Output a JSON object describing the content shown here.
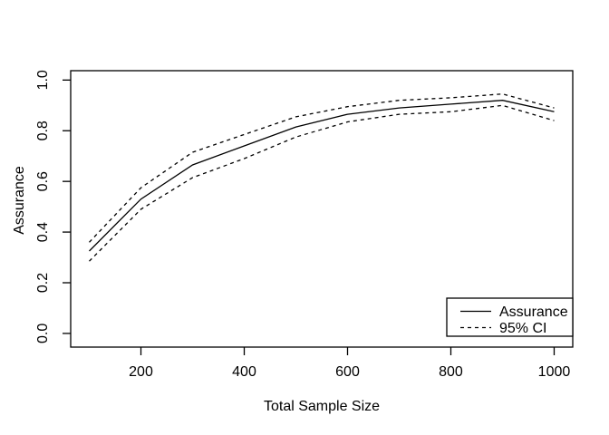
{
  "figure": {
    "background": "#ffffff",
    "foreground": "#000000"
  },
  "chart_data": {
    "type": "line",
    "title": "",
    "xlabel": "Total Sample Size",
    "ylabel": "Assurance",
    "x": [
      100,
      200,
      300,
      400,
      500,
      600,
      700,
      800,
      900,
      1000
    ],
    "series": [
      {
        "name": "Assurance",
        "style": "solid",
        "values": [
          0.325,
          0.53,
          0.665,
          0.74,
          0.815,
          0.865,
          0.89,
          0.905,
          0.92,
          0.875
        ]
      },
      {
        "name": "95% CI upper",
        "style": "dashed",
        "values": [
          0.36,
          0.575,
          0.715,
          0.785,
          0.855,
          0.895,
          0.92,
          0.93,
          0.945,
          0.89
        ]
      },
      {
        "name": "95% CI lower",
        "style": "dashed",
        "values": [
          0.285,
          0.49,
          0.615,
          0.69,
          0.775,
          0.835,
          0.865,
          0.875,
          0.9,
          0.84
        ]
      }
    ],
    "x_ticks": [
      "200",
      "400",
      "600",
      "800",
      "1000"
    ],
    "y_ticks": [
      "0.0",
      "0.2",
      "0.4",
      "0.6",
      "0.8",
      "1.0"
    ],
    "xlim": [
      64,
      1036
    ],
    "ylim": [
      -0.054,
      1.037
    ],
    "grid": false,
    "line_color": "#000000",
    "legend": {
      "position": "bottom-right",
      "entries": [
        {
          "label": "Assurance",
          "style": "solid"
        },
        {
          "label": "95% CI",
          "style": "dashed"
        }
      ]
    }
  }
}
